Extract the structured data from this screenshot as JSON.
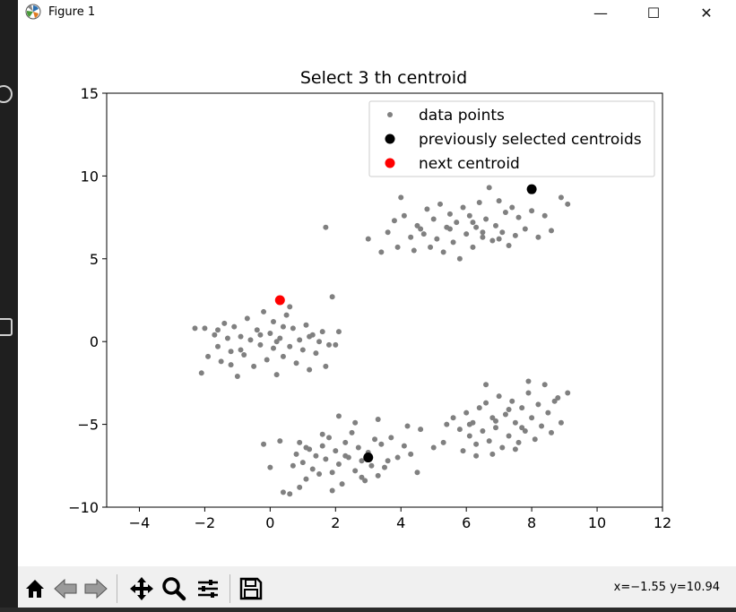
{
  "window": {
    "title": "Figure 1",
    "minimize_glyph": "—",
    "maximize_glyph": "☐",
    "close_glyph": "✕"
  },
  "toolbar": {
    "buttons": [
      "home-icon",
      "back-arrow-icon",
      "forward-arrow-icon",
      "pan-move-icon",
      "zoom-magnifier-icon",
      "configure-subplots-icon",
      "save-icon"
    ],
    "coords": "x=−1.55 y=10.94"
  },
  "chart_data": {
    "type": "scatter",
    "title": "Select  3 th centroid",
    "xlabel": "",
    "ylabel": "",
    "xlim": [
      -5,
      12
    ],
    "ylim": [
      -10,
      15
    ],
    "xticks": [
      -4,
      -2,
      0,
      2,
      4,
      6,
      8,
      10,
      12
    ],
    "yticks": [
      -10,
      -5,
      0,
      5,
      10,
      15
    ],
    "xtick_labels": [
      "−4",
      "−2",
      "0",
      "2",
      "4",
      "6",
      "8",
      "10",
      "12"
    ],
    "ytick_labels": [
      "−10",
      "−5",
      "0",
      "5",
      "10",
      "15"
    ],
    "grid": false,
    "legend_position": "upper-right",
    "colors": {
      "data": "#808080",
      "previous": "#000000",
      "next": "#ff0000"
    },
    "series": [
      {
        "name": "data points",
        "color": "#808080",
        "points": [
          [
            -2.3,
            0.8
          ],
          [
            -2.1,
            -1.9
          ],
          [
            -1.9,
            -0.9
          ],
          [
            -1.7,
            0.4
          ],
          [
            -1.6,
            -0.3
          ],
          [
            -1.5,
            -1.2
          ],
          [
            -1.4,
            1.1
          ],
          [
            -1.3,
            0.2
          ],
          [
            -1.2,
            -0.6
          ],
          [
            -1.1,
            0.9
          ],
          [
            -1.0,
            -2.1
          ],
          [
            -0.9,
            0.3
          ],
          [
            -0.8,
            -0.8
          ],
          [
            -0.7,
            1.4
          ],
          [
            -0.6,
            0.1
          ],
          [
            -0.5,
            -1.5
          ],
          [
            -0.4,
            0.7
          ],
          [
            -0.3,
            -0.2
          ],
          [
            -0.2,
            1.8
          ],
          [
            -0.1,
            -1.1
          ],
          [
            0.0,
            0.5
          ],
          [
            0.1,
            -0.4
          ],
          [
            0.1,
            1.2
          ],
          [
            0.2,
            -2.0
          ],
          [
            0.3,
            0.2
          ],
          [
            0.4,
            -0.9
          ],
          [
            0.5,
            1.6
          ],
          [
            0.6,
            -0.3
          ],
          [
            0.7,
            0.8
          ],
          [
            0.8,
            -1.3
          ],
          [
            0.9,
            0.1
          ],
          [
            1.0,
            -0.5
          ],
          [
            1.1,
            1.0
          ],
          [
            1.2,
            -1.7
          ],
          [
            1.3,
            0.4
          ],
          [
            1.4,
            -0.7
          ],
          [
            1.5,
            0.0
          ],
          [
            1.6,
            0.6
          ],
          [
            1.7,
            -1.5
          ],
          [
            1.9,
            2.7
          ],
          [
            -1.6,
            0.7
          ],
          [
            -0.9,
            -0.5
          ],
          [
            -0.3,
            0.4
          ],
          [
            0.4,
            0.9
          ],
          [
            1.2,
            0.3
          ],
          [
            2.0,
            -0.2
          ],
          [
            0.6,
            2.1
          ],
          [
            -1.2,
            -1.4
          ],
          [
            1.8,
            -0.2
          ],
          [
            2.1,
            0.6
          ],
          [
            0.2,
            0.0
          ],
          [
            -2.0,
            0.8
          ],
          [
            -0.2,
            -6.2
          ],
          [
            0.0,
            -7.6
          ],
          [
            0.3,
            -6.0
          ],
          [
            0.4,
            -9.1
          ],
          [
            0.6,
            -9.2
          ],
          [
            0.7,
            -7.5
          ],
          [
            0.8,
            -6.8
          ],
          [
            0.9,
            -6.1
          ],
          [
            1.0,
            -7.3
          ],
          [
            1.1,
            -8.3
          ],
          [
            1.2,
            -6.5
          ],
          [
            1.3,
            -7.7
          ],
          [
            1.4,
            -6.9
          ],
          [
            1.5,
            -8.0
          ],
          [
            1.6,
            -6.3
          ],
          [
            1.7,
            -7.1
          ],
          [
            1.8,
            -5.8
          ],
          [
            1.9,
            -7.9
          ],
          [
            2.0,
            -6.6
          ],
          [
            2.1,
            -7.4
          ],
          [
            2.2,
            -8.6
          ],
          [
            2.3,
            -6.1
          ],
          [
            2.4,
            -7.0
          ],
          [
            2.5,
            -5.5
          ],
          [
            2.6,
            -7.8
          ],
          [
            2.7,
            -6.4
          ],
          [
            2.8,
            -7.2
          ],
          [
            2.9,
            -8.4
          ],
          [
            3.0,
            -6.7
          ],
          [
            3.1,
            -7.5
          ],
          [
            3.2,
            -5.9
          ],
          [
            3.3,
            -8.1
          ],
          [
            3.4,
            -6.2
          ],
          [
            3.5,
            -7.6
          ],
          [
            3.7,
            -5.8
          ],
          [
            3.9,
            -7.0
          ],
          [
            4.1,
            -6.3
          ],
          [
            4.3,
            -6.8
          ],
          [
            4.5,
            -7.9
          ],
          [
            4.6,
            -5.3
          ],
          [
            1.6,
            -5.6
          ],
          [
            2.1,
            -4.5
          ],
          [
            2.6,
            -4.9
          ],
          [
            3.3,
            -4.7
          ],
          [
            4.2,
            -5.1
          ],
          [
            0.9,
            -8.8
          ],
          [
            1.9,
            -9.0
          ],
          [
            2.8,
            -8.2
          ],
          [
            1.1,
            -6.4
          ],
          [
            2.3,
            -6.9
          ],
          [
            3.6,
            -7.2
          ],
          [
            3.0,
            6.2
          ],
          [
            3.4,
            5.4
          ],
          [
            3.6,
            6.6
          ],
          [
            3.8,
            7.3
          ],
          [
            3.9,
            5.7
          ],
          [
            4.0,
            8.7
          ],
          [
            4.1,
            7.6
          ],
          [
            4.3,
            6.3
          ],
          [
            4.4,
            5.5
          ],
          [
            4.5,
            7.0
          ],
          [
            4.6,
            6.8
          ],
          [
            4.8,
            8.0
          ],
          [
            4.9,
            5.7
          ],
          [
            5.0,
            7.4
          ],
          [
            5.1,
            6.2
          ],
          [
            5.2,
            8.3
          ],
          [
            5.3,
            5.4
          ],
          [
            5.4,
            6.9
          ],
          [
            5.5,
            7.7
          ],
          [
            5.6,
            6.0
          ],
          [
            5.7,
            7.2
          ],
          [
            5.8,
            5.0
          ],
          [
            5.9,
            8.1
          ],
          [
            6.0,
            6.5
          ],
          [
            6.1,
            7.6
          ],
          [
            6.2,
            5.7
          ],
          [
            6.3,
            6.9
          ],
          [
            6.4,
            8.4
          ],
          [
            6.5,
            6.3
          ],
          [
            6.6,
            7.4
          ],
          [
            6.7,
            9.3
          ],
          [
            6.8,
            6.1
          ],
          [
            6.9,
            7.0
          ],
          [
            7.0,
            8.5
          ],
          [
            7.1,
            6.6
          ],
          [
            7.2,
            7.8
          ],
          [
            7.3,
            5.8
          ],
          [
            7.4,
            8.1
          ],
          [
            7.5,
            6.4
          ],
          [
            7.6,
            7.5
          ],
          [
            7.8,
            6.8
          ],
          [
            8.0,
            7.9
          ],
          [
            8.2,
            6.3
          ],
          [
            8.4,
            7.6
          ],
          [
            8.6,
            6.7
          ],
          [
            8.9,
            8.7
          ],
          [
            9.1,
            8.3
          ],
          [
            1.7,
            6.9
          ],
          [
            6.5,
            6.6
          ],
          [
            5.5,
            6.8
          ],
          [
            6.2,
            7.2
          ],
          [
            4.7,
            6.5
          ],
          [
            7.0,
            6.2
          ],
          [
            5.0,
            -6.4
          ],
          [
            5.3,
            -6.1
          ],
          [
            5.4,
            -5.0
          ],
          [
            5.6,
            -4.6
          ],
          [
            5.8,
            -5.3
          ],
          [
            5.9,
            -6.6
          ],
          [
            6.0,
            -4.3
          ],
          [
            6.1,
            -5.7
          ],
          [
            6.2,
            -4.9
          ],
          [
            6.3,
            -6.2
          ],
          [
            6.4,
            -4.0
          ],
          [
            6.5,
            -5.4
          ],
          [
            6.6,
            -3.7
          ],
          [
            6.7,
            -6.0
          ],
          [
            6.8,
            -4.6
          ],
          [
            6.9,
            -5.2
          ],
          [
            7.0,
            -3.3
          ],
          [
            7.1,
            -6.4
          ],
          [
            7.2,
            -4.4
          ],
          [
            7.3,
            -5.7
          ],
          [
            7.4,
            -3.6
          ],
          [
            7.5,
            -4.9
          ],
          [
            7.6,
            -6.1
          ],
          [
            7.7,
            -4.0
          ],
          [
            7.8,
            -5.4
          ],
          [
            7.9,
            -3.1
          ],
          [
            8.0,
            -4.6
          ],
          [
            8.1,
            -5.9
          ],
          [
            8.2,
            -3.8
          ],
          [
            8.3,
            -5.1
          ],
          [
            8.4,
            -2.6
          ],
          [
            8.5,
            -4.3
          ],
          [
            8.6,
            -5.5
          ],
          [
            8.8,
            -3.4
          ],
          [
            8.9,
            -4.9
          ],
          [
            9.1,
            -3.1
          ],
          [
            6.6,
            -2.6
          ],
          [
            7.9,
            -2.4
          ],
          [
            6.3,
            -6.9
          ],
          [
            7.5,
            -6.5
          ],
          [
            8.7,
            -3.6
          ],
          [
            6.9,
            -4.8
          ],
          [
            7.3,
            -4.1
          ],
          [
            6.1,
            -5.0
          ],
          [
            7.7,
            -5.2
          ],
          [
            6.8,
            -6.8
          ]
        ]
      },
      {
        "name": "previously selected centroids",
        "color": "#000000",
        "points": [
          [
            8.0,
            9.2
          ],
          [
            3.0,
            -7.0
          ]
        ]
      },
      {
        "name": "next centroid",
        "color": "#ff0000",
        "points": [
          [
            0.3,
            2.5
          ]
        ]
      }
    ]
  }
}
